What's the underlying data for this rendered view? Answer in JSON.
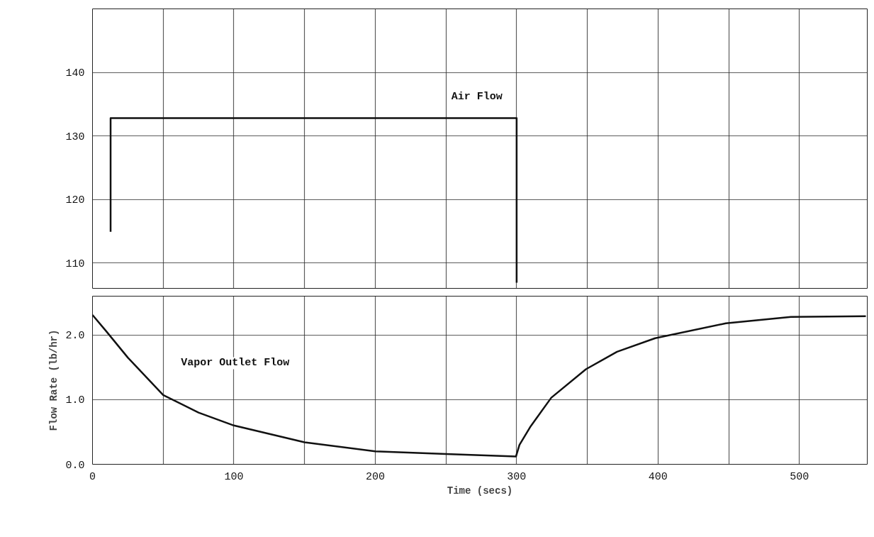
{
  "chart_data": [
    {
      "type": "line",
      "xlim": [
        0,
        548
      ],
      "xticks": [
        0,
        100,
        200,
        300,
        400,
        500
      ],
      "ylim": [
        106,
        150
      ],
      "yticks": [
        110,
        120,
        130,
        140
      ],
      "grid": true,
      "tick_labels": "y",
      "series": [
        {
          "name": "Air Flow",
          "color": "#111111",
          "x": [
            12.8,
            12.8,
            300,
            300
          ],
          "values": [
            114.9,
            132.8,
            132.8,
            106.9
          ]
        }
      ]
    },
    {
      "type": "line",
      "xlim": [
        0,
        548
      ],
      "xticks": [
        0,
        100,
        200,
        300,
        400,
        500
      ],
      "ylim": [
        0,
        2.6
      ],
      "yticks": [
        {
          "value": 0,
          "label": "0.0"
        },
        {
          "value": 1,
          "label": "1.0"
        },
        {
          "value": 2,
          "label": "2.0"
        }
      ],
      "grid": true,
      "xlabel": "Time (secs)",
      "ylabel": "Flow Rate (lb/hr)",
      "series": [
        {
          "name": "Vapor Outlet Flow",
          "color": "#111111",
          "x": [
            0,
            10,
            25,
            50,
            75,
            100,
            150,
            200,
            250,
            299.5,
            302,
            310,
            324.5,
            349,
            371,
            398,
            448,
            494,
            547
          ],
          "values": [
            2.31,
            2.05,
            1.65,
            1.07,
            0.8,
            0.6,
            0.34,
            0.2,
            0.16,
            0.12,
            0.3,
            0.59,
            1.03,
            1.47,
            1.74,
            1.95,
            2.18,
            2.28,
            2.29
          ]
        }
      ]
    }
  ]
}
